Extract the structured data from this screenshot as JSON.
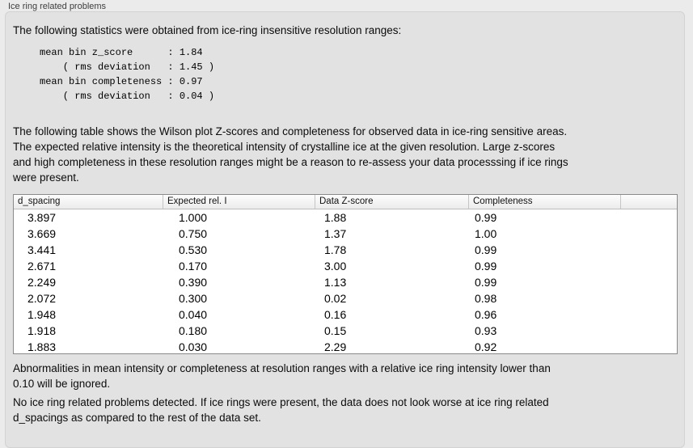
{
  "window": {
    "title": "Ice ring related problems"
  },
  "panel": {
    "intro": "The following statistics were obtained from ice-ring insensitive resolution ranges:",
    "stats_block": "mean bin z_score      : 1.84\n    ( rms deviation   : 1.45 )\nmean bin completeness : 0.97\n    ( rms deviation   : 0.04 )",
    "table_description": "The following table shows the Wilson plot Z-scores and completeness for observed data in ice-ring sensitive areas.\nThe expected relative intensity is the theoretical intensity of crystalline ice at the given resolution. Large z-scores\nand high completeness in these resolution ranges might be a reason to re-assess your data processsing if ice rings\nwere present.",
    "table": {
      "columns": [
        "d_spacing",
        "Expected rel. I",
        "Data Z-score",
        "Completeness"
      ],
      "rows": [
        [
          "3.897",
          "1.000",
          "1.88",
          "0.99"
        ],
        [
          "3.669",
          "0.750",
          "1.37",
          "1.00"
        ],
        [
          "3.441",
          "0.530",
          "1.78",
          "0.99"
        ],
        [
          "2.671",
          "0.170",
          "3.00",
          "0.99"
        ],
        [
          "2.249",
          "0.390",
          "1.13",
          "0.99"
        ],
        [
          "2.072",
          "0.300",
          "0.02",
          "0.98"
        ],
        [
          "1.948",
          "0.040",
          "0.16",
          "0.96"
        ],
        [
          "1.918",
          "0.180",
          "0.15",
          "0.93"
        ],
        [
          "1.883",
          "0.030",
          "2.29",
          "0.92"
        ]
      ]
    },
    "ignore_note": "Abnormalities in mean intensity or completeness at resolution ranges with a relative ice ring intensity lower than\n0.10 will be ignored.",
    "conclusion": "No ice ring related problems detected. If ice rings were present, the data does not look worse at ice ring related\nd_spacings as compared to the rest of the data set."
  },
  "colors": {
    "page_background": "#ebebeb",
    "panel_background": "#e2e2e2",
    "table_background": "#ffffff",
    "table_border": "#8a8a8a",
    "text": "#000000"
  }
}
